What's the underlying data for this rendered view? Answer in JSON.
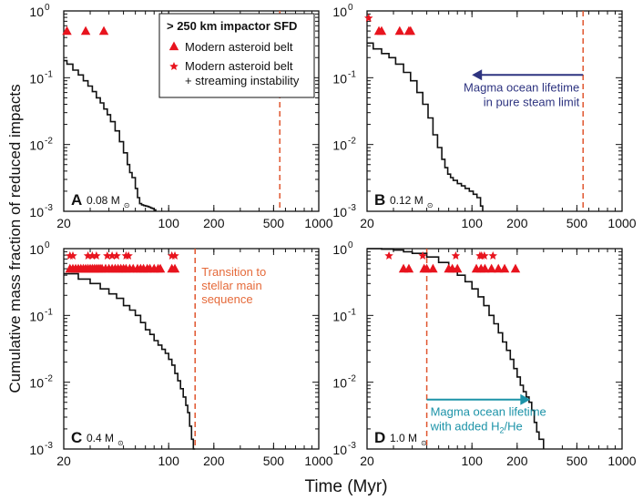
{
  "figure": {
    "xlabel": "Time (Myr)",
    "ylabel": "Cumulative mass fraction of reduced impacts"
  },
  "legend": {
    "title": "> 250 km impactor SFD",
    "entries": [
      {
        "symbol": "triangle",
        "label": "Modern asteroid belt"
      },
      {
        "symbol": "star",
        "label_lines": [
          "Modern asteroid belt",
          "+ streaming instability"
        ]
      }
    ]
  },
  "colors": {
    "marker": "#e8141e",
    "curve": "#111111",
    "dashed_line": "#e0552e",
    "arrow_steam": "#2e3480",
    "arrow_h2": "#1c93a8",
    "text_transition": "#e56a3a"
  },
  "chart_data": [
    {
      "panel": "A",
      "type": "line",
      "label": "A",
      "mass": "0.08",
      "mass_unit": "M",
      "xscale": "log",
      "yscale": "log",
      "xlim": [
        20,
        1000
      ],
      "ylim": [
        0.001,
        1
      ],
      "xticks": [
        20,
        100,
        200,
        500,
        1000
      ],
      "xticklabels": [
        "20",
        "100",
        "200",
        "500",
        "1000"
      ],
      "yticks": [
        0.001,
        0.01,
        0.1,
        1
      ],
      "yticklabels_base": [
        "10",
        "10",
        "10",
        "10"
      ],
      "yticklabels_exp": [
        "-3",
        "-2",
        "-1",
        "0"
      ],
      "show_ylabels": true,
      "show_xlabels": false,
      "curve": {
        "x": [
          20,
          21,
          23,
          25,
          27,
          29,
          31,
          33,
          35,
          37,
          39,
          41,
          44,
          47,
          50,
          53,
          55,
          57,
          60,
          62,
          64,
          66,
          68,
          70,
          72,
          74,
          76,
          78,
          80,
          82
        ],
        "y": [
          0.18,
          0.16,
          0.13,
          0.11,
          0.09,
          0.075,
          0.062,
          0.05,
          0.042,
          0.034,
          0.028,
          0.022,
          0.016,
          0.011,
          0.0075,
          0.005,
          0.0038,
          0.0032,
          0.0022,
          0.0016,
          0.0013,
          0.00125,
          0.00122,
          0.0012,
          0.00118,
          0.00115,
          0.00112,
          0.0011,
          0.00105,
          0.001
        ]
      },
      "triangles": [
        21,
        28,
        37
      ],
      "triangles_y": 0.5,
      "stars": [],
      "stars_y": 0.78,
      "vline": 550
    },
    {
      "panel": "B",
      "type": "line",
      "label": "B",
      "mass": "0.12",
      "mass_unit": "M",
      "xscale": "log",
      "yscale": "log",
      "xlim": [
        20,
        1000
      ],
      "ylim": [
        0.001,
        1
      ],
      "xticks": [
        20,
        100,
        200,
        500,
        1000
      ],
      "xticklabels": [
        "20",
        "100",
        "200",
        "500",
        "1000"
      ],
      "yticks": [
        0.001,
        0.01,
        0.1,
        1
      ],
      "yticklabels_base": [
        "10",
        "10",
        "10",
        "10"
      ],
      "yticklabels_exp": [
        "-3",
        "-2",
        "-1",
        "0"
      ],
      "show_ylabels": true,
      "show_xlabels": false,
      "curve": {
        "x": [
          20,
          22,
          25,
          28,
          31,
          35,
          39,
          43,
          47,
          51,
          55,
          59,
          63,
          66,
          69,
          72,
          75,
          80,
          85,
          90,
          96,
          102,
          108,
          114,
          118
        ],
        "y": [
          0.33,
          0.27,
          0.23,
          0.2,
          0.16,
          0.12,
          0.09,
          0.06,
          0.04,
          0.025,
          0.014,
          0.009,
          0.006,
          0.0045,
          0.0036,
          0.0032,
          0.0029,
          0.0026,
          0.0024,
          0.0022,
          0.002,
          0.0018,
          0.0016,
          0.0012,
          0.001
        ]
      },
      "triangles": [
        24,
        25,
        33,
        38,
        39
      ],
      "triangles_y": 0.5,
      "stars": [
        20.5
      ],
      "stars_y": 0.78,
      "vline": 550,
      "arrow": {
        "from": 550,
        "to": 100,
        "y": 0.11,
        "text_lines": [
          "Magma ocean lifetime",
          "in pure steam limit"
        ]
      }
    },
    {
      "panel": "C",
      "type": "line",
      "label": "C",
      "mass": "0.4",
      "mass_unit": "M",
      "xscale": "log",
      "yscale": "log",
      "xlim": [
        20,
        1000
      ],
      "ylim": [
        0.001,
        1
      ],
      "xticks": [
        20,
        100,
        200,
        500,
        1000
      ],
      "xticklabels": [
        "20",
        "100",
        "200",
        "500",
        "1000"
      ],
      "yticks": [
        0.001,
        0.01,
        0.1,
        1
      ],
      "yticklabels_base": [
        "10",
        "10",
        "10",
        "10"
      ],
      "yticklabels_exp": [
        "-3",
        "-2",
        "-1",
        "0"
      ],
      "show_ylabels": true,
      "show_xlabels": true,
      "curve": {
        "x": [
          20,
          25,
          30,
          35,
          40,
          45,
          50,
          55,
          60,
          65,
          70,
          75,
          80,
          85,
          90,
          95,
          100,
          105,
          110,
          115,
          120,
          125,
          130,
          134,
          138,
          142,
          146,
          150
        ],
        "y": [
          0.42,
          0.35,
          0.3,
          0.25,
          0.21,
          0.18,
          0.14,
          0.12,
          0.1,
          0.078,
          0.061,
          0.052,
          0.042,
          0.036,
          0.031,
          0.027,
          0.022,
          0.018,
          0.0135,
          0.0105,
          0.008,
          0.006,
          0.0045,
          0.0035,
          0.0022,
          0.0014,
          0.001,
          0.001
        ]
      },
      "triangles": [
        22,
        23,
        24,
        25,
        26,
        27,
        28,
        29,
        30,
        31,
        32,
        33,
        34,
        35,
        36,
        38,
        40,
        42,
        44,
        46,
        48,
        50,
        52,
        55,
        58,
        62,
        65,
        68,
        72,
        75,
        80,
        85,
        88,
        105,
        110
      ],
      "triangles_y": 0.5,
      "stars": [
        22,
        23,
        29,
        31,
        33,
        39,
        42,
        45,
        52,
        54,
        105,
        110
      ],
      "stars_y": 0.78,
      "vline": 150,
      "vline_text_lines": [
        "Transition to",
        "stellar main",
        "sequence"
      ]
    },
    {
      "panel": "D",
      "type": "line",
      "label": "D",
      "mass": "1.0",
      "mass_unit": "M",
      "xscale": "log",
      "yscale": "log",
      "xlim": [
        20,
        1000
      ],
      "ylim": [
        0.001,
        1
      ],
      "xticks": [
        20,
        100,
        200,
        500,
        1000
      ],
      "xticklabels": [
        "20",
        "100",
        "200",
        "500",
        "1000"
      ],
      "yticks": [
        0.001,
        0.01,
        0.1,
        1
      ],
      "yticklabels_base": [
        "10",
        "10",
        "10",
        "10"
      ],
      "yticklabels_exp": [
        "-3",
        "-2",
        "-1",
        "0"
      ],
      "show_ylabels": true,
      "show_xlabels": true,
      "curve": {
        "x": [
          20,
          25,
          30,
          35,
          40,
          50,
          60,
          70,
          80,
          90,
          100,
          110,
          120,
          130,
          140,
          150,
          160,
          170,
          180,
          190,
          200,
          210,
          220,
          230,
          240,
          250,
          260,
          270,
          280,
          300
        ],
        "y": [
          1.0,
          0.98,
          0.95,
          0.9,
          0.85,
          0.75,
          0.62,
          0.5,
          0.4,
          0.32,
          0.25,
          0.19,
          0.14,
          0.1,
          0.075,
          0.055,
          0.04,
          0.03,
          0.022,
          0.016,
          0.012,
          0.009,
          0.0072,
          0.006,
          0.005,
          0.0038,
          0.0025,
          0.0018,
          0.0014,
          0.001
        ]
      },
      "triangles": [
        35,
        38,
        48,
        50,
        55,
        70,
        74,
        80,
        107,
        115,
        122,
        135,
        150,
        165,
        195
      ],
      "triangles_y": 0.5,
      "stars": [
        28,
        47,
        78,
        113,
        116,
        121,
        138
      ],
      "stars_y": 0.78,
      "vline": 50,
      "arrow": {
        "from": 50,
        "to": 245,
        "y": 0.0055,
        "text_lines": [
          "Magma ocean lifetime",
          "with added H",
          "/He"
        ],
        "subscript": "2"
      }
    }
  ]
}
